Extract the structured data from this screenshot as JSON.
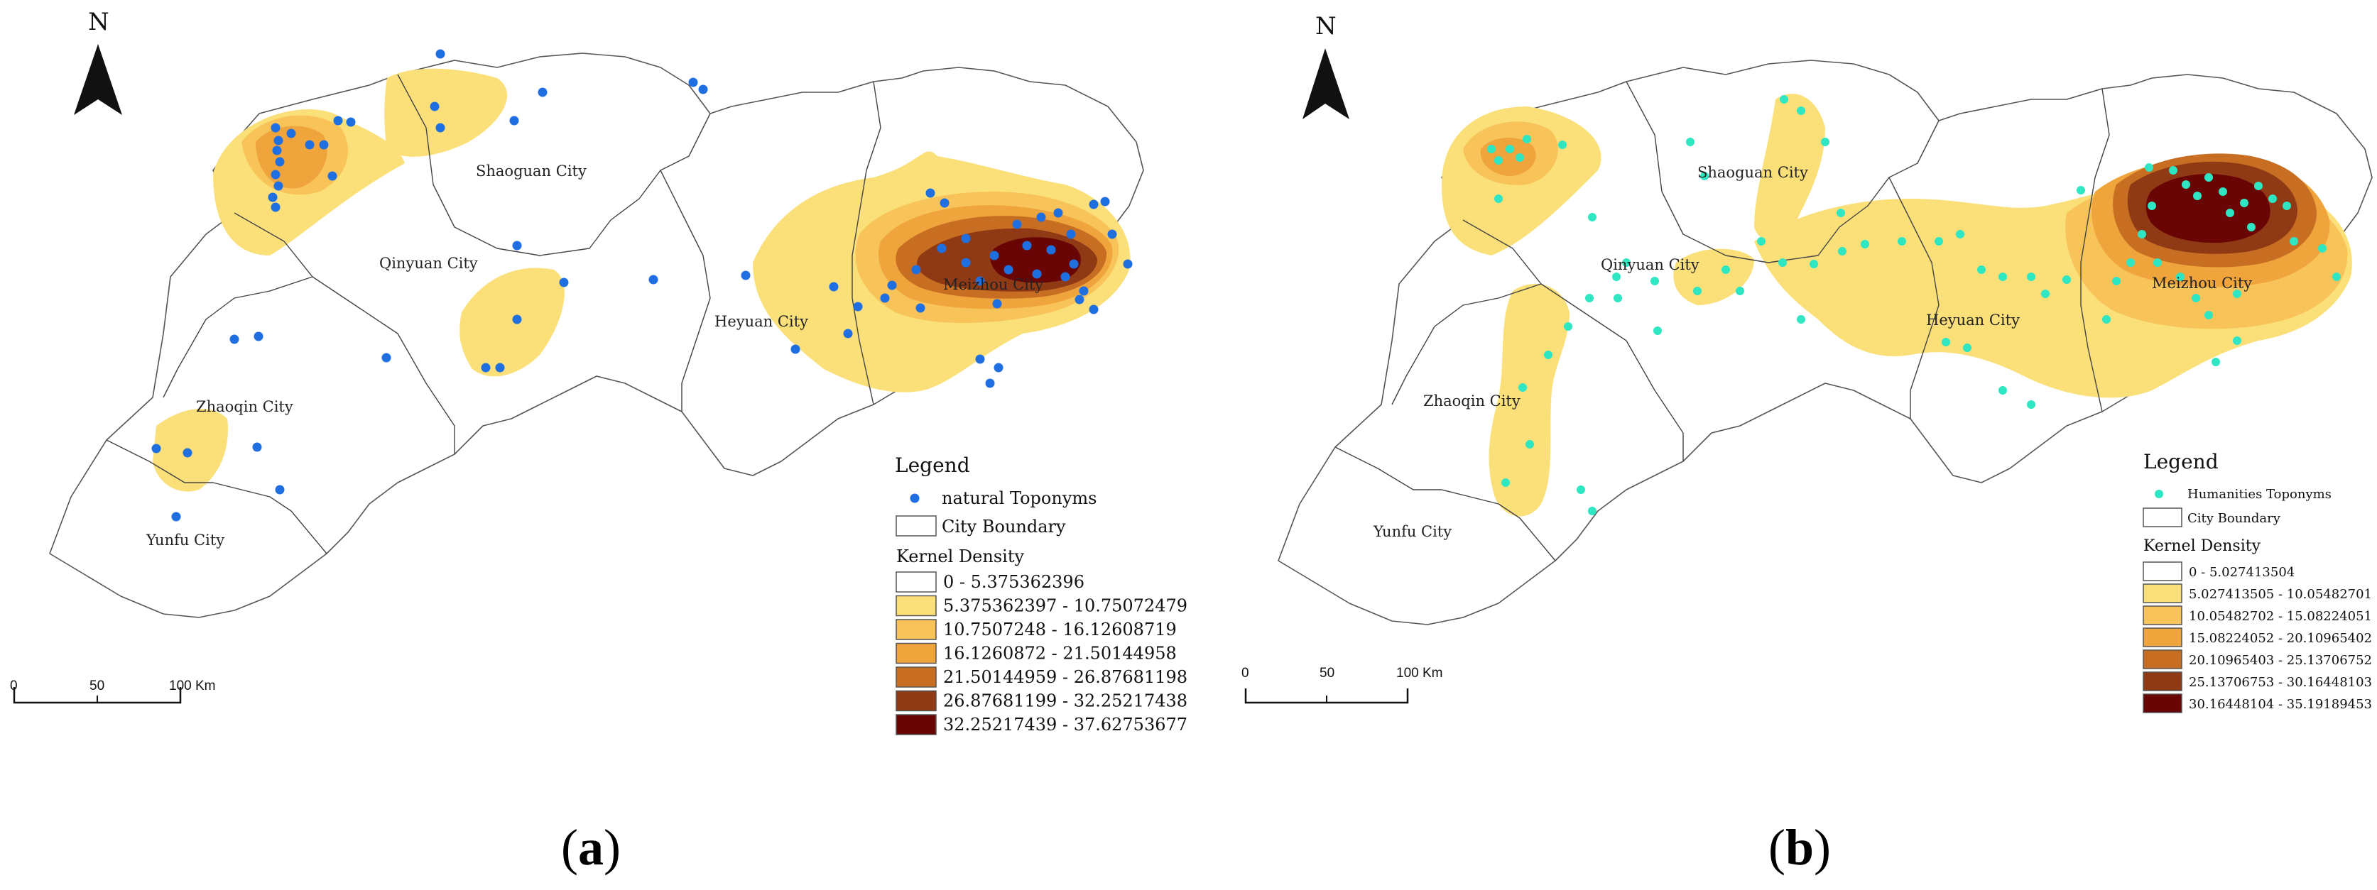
{
  "colors": {
    "natural_points": "#1f6fe0",
    "humanities_points": "#2ee6c2",
    "boundary": "#555555",
    "density": [
      "#ffffff",
      "#fbe07a",
      "#f8c45a",
      "#f0a43c",
      "#c76e22",
      "#8f3a14",
      "#6a0505"
    ]
  },
  "panels": [
    {
      "id": "a",
      "panel_label": "a",
      "north": "N",
      "cities": [
        "Shaoguan City",
        "Qinyuan City",
        "Zhaoqin City",
        "Yunfu City",
        "Heyuan City",
        "Meizhou City"
      ],
      "scale": {
        "ticks": [
          "0",
          "50",
          "100 Km"
        ]
      },
      "legend": {
        "title": "Legend",
        "points_label": "natural Toponyms",
        "boundary_label": "City Boundary",
        "density_title": "Kernel Density",
        "classes": [
          "0 - 5.375362396",
          "5.375362397 - 10.75072479",
          "10.7507248 - 16.12608719",
          "16.1260872 - 21.50144958",
          "21.50144959 - 26.87681198",
          "26.87681199 - 32.25217438",
          "32.25217439 - 37.62753677"
        ]
      }
    },
    {
      "id": "b",
      "panel_label": "b",
      "north": "N",
      "cities": [
        "Shaoguan City",
        "Qinyuan City",
        "Zhaoqin City",
        "Yunfu City",
        "Heyuan City",
        "Meizhou City"
      ],
      "scale": {
        "ticks": [
          "0",
          "50",
          "100 Km"
        ]
      },
      "legend": {
        "title": "Legend",
        "points_label": "Humanities Toponyms",
        "boundary_label": "City Boundary",
        "density_title": "Kernel Density",
        "classes": [
          "0 - 5.027413504",
          "5.027413505 - 10.05482701",
          "10.05482702 - 15.08224051",
          "15.08224052 - 20.10965402",
          "20.10965403 - 25.13706752",
          "25.13706753 - 30.16448103",
          "30.16448104 - 35.19189453"
        ]
      }
    }
  ]
}
